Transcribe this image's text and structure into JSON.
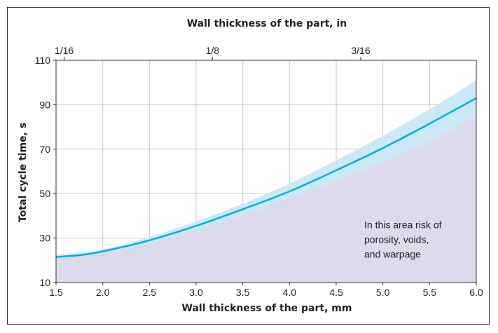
{
  "chart_data": {
    "type": "line",
    "title": "",
    "xlabel": "Wall thickness of the part, mm",
    "ylabel": "Total cycle time, s",
    "x2label": "Wall thickness of the part, in",
    "xlim": [
      1.5,
      6.0
    ],
    "ylim": [
      10,
      110
    ],
    "grid": true,
    "x_ticks": [
      "1.5",
      "2.0",
      "2.5",
      "3.0",
      "3.5",
      "4.0",
      "4.5",
      "5.0",
      "5.5",
      "6.0"
    ],
    "y_ticks": [
      "10",
      "30",
      "50",
      "70",
      "90",
      "110"
    ],
    "x2_ticks": [
      {
        "label": "1/16",
        "mm": 1.5875
      },
      {
        "label": "1/8",
        "mm": 3.175
      },
      {
        "label": "3/16",
        "mm": 4.7625
      }
    ],
    "series": [
      {
        "x": [
          1.5,
          1.75,
          2.0,
          2.5,
          3.0,
          3.5,
          4.0,
          4.5,
          5.0,
          5.5,
          6.0
        ],
        "y": [
          21.5,
          22.3,
          24,
          29,
          35.5,
          43,
          51,
          60.5,
          70.5,
          81.5,
          93
        ]
      }
    ],
    "band": {
      "x": [
        1.5,
        2.0,
        2.5,
        3.0,
        3.5,
        4.0,
        4.5,
        5.0,
        5.5,
        6.0
      ],
      "upper": [
        22.5,
        25,
        30.5,
        37.5,
        45.5,
        54.5,
        65,
        76,
        88,
        101
      ],
      "lower": [
        21,
        23,
        27.5,
        34,
        40.5,
        48,
        56,
        64.5,
        74,
        85
      ]
    },
    "annotation": {
      "lines": [
        "In this area risk of",
        "porosity, voids,",
        "and warpage"
      ],
      "x": 4.8,
      "y": 34.5
    },
    "colors": {
      "line": "#00aee6",
      "band": "#cbe9f7",
      "area": "#dcdbec",
      "grid": "#c9c9c9",
      "axis": "#333333"
    }
  }
}
